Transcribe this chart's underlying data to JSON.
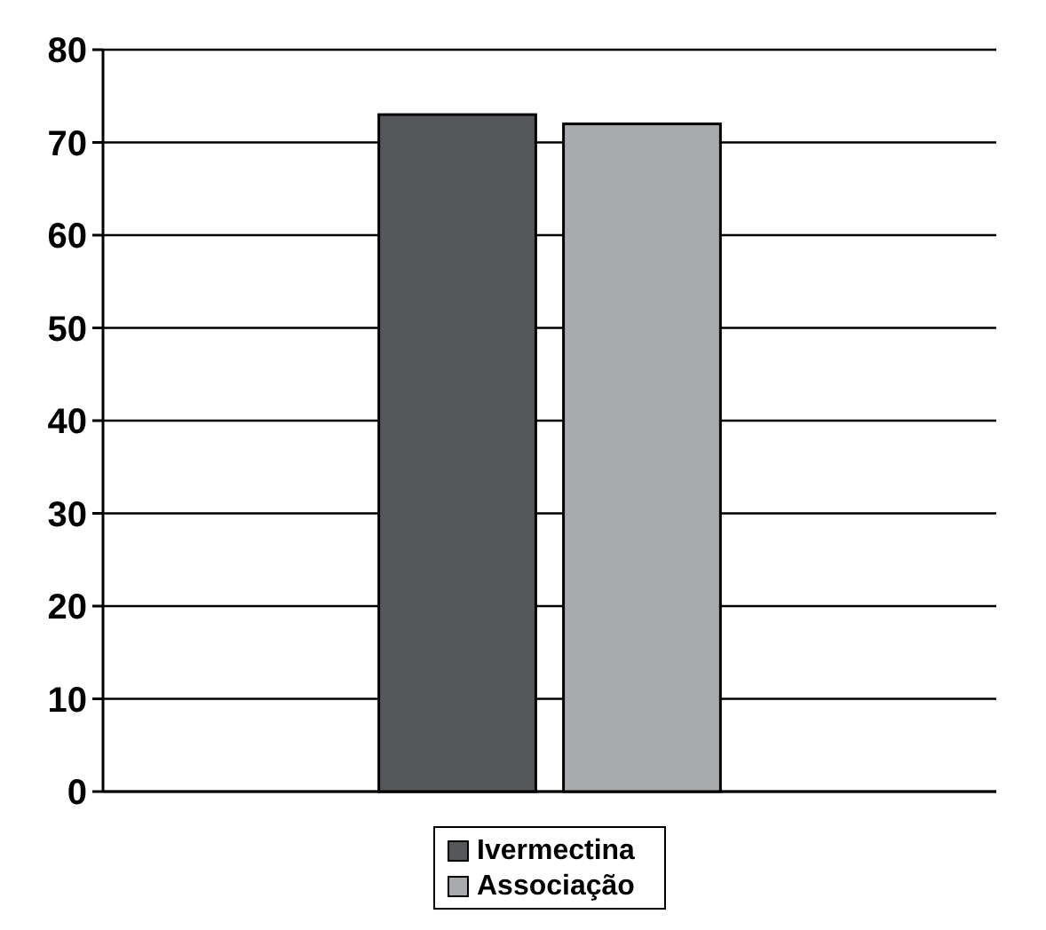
{
  "chart_data": {
    "type": "bar",
    "categories": [
      null
    ],
    "series": [
      {
        "name": "Ivermectina",
        "color": "#56575a",
        "values": [
          73
        ]
      },
      {
        "name": "Associação",
        "color": "#a9aaad",
        "values": [
          72
        ]
      }
    ],
    "ylim": [
      0,
      80
    ],
    "yticks": [
      0,
      10,
      20,
      30,
      40,
      50,
      60,
      70,
      80
    ],
    "grid": "y",
    "legend": "bottom"
  }
}
